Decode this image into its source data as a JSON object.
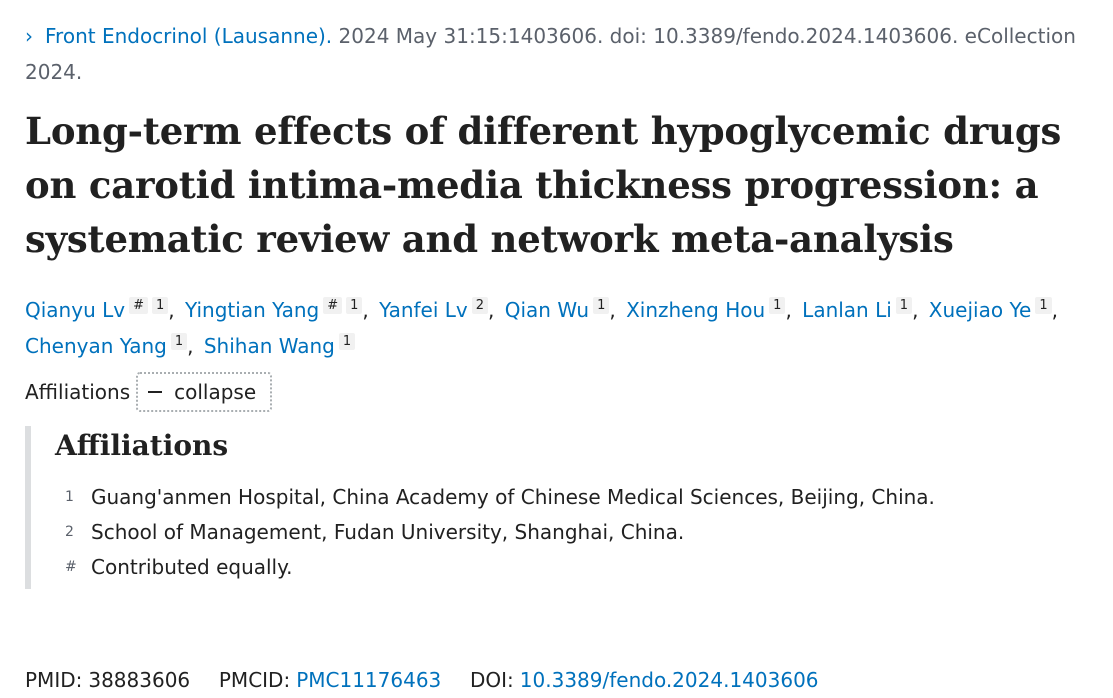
{
  "citation": {
    "journal": "Front Endocrinol (Lausanne).",
    "details": "2024 May 31:15:1403606. doi: 10.3389/fendo.2024.1403606. eCollection 2024."
  },
  "title": "Long-term effects of different hypoglycemic drugs on carotid intima-media thickness progression: a systematic review and network meta-analysis",
  "authors": [
    {
      "name": "Qianyu Lv",
      "sups": [
        "#",
        "1"
      ]
    },
    {
      "name": "Yingtian Yang",
      "sups": [
        "#",
        "1"
      ]
    },
    {
      "name": "Yanfei Lv",
      "sups": [
        "2"
      ]
    },
    {
      "name": "Qian Wu",
      "sups": [
        "1"
      ]
    },
    {
      "name": "Xinzheng Hou",
      "sups": [
        "1"
      ]
    },
    {
      "name": "Lanlan Li",
      "sups": [
        "1"
      ]
    },
    {
      "name": "Xuejiao Ye",
      "sups": [
        "1"
      ]
    },
    {
      "name": "Chenyan Yang",
      "sups": [
        "1"
      ]
    },
    {
      "name": "Shihan Wang",
      "sups": [
        "1"
      ]
    }
  ],
  "affiliations_toggle": {
    "label": "Affiliations",
    "button": "collapse"
  },
  "affiliations": {
    "heading": "Affiliations",
    "items": [
      {
        "mark": "1",
        "text": "Guang'anmen Hospital, China Academy of Chinese Medical Sciences, Beijing, China."
      },
      {
        "mark": "2",
        "text": "School of Management, Fudan University, Shanghai, China."
      },
      {
        "mark": "#",
        "text": "Contributed equally."
      }
    ]
  },
  "identifiers": {
    "pmid_label": "PMID:",
    "pmid": "38883606",
    "pmcid_label": "PMCID:",
    "pmcid": "PMC11176463",
    "doi_label": "DOI:",
    "doi": "10.3389/fendo.2024.1403606"
  },
  "colors": {
    "link": "#0071bc",
    "text": "#212121",
    "muted": "#5b616b"
  }
}
